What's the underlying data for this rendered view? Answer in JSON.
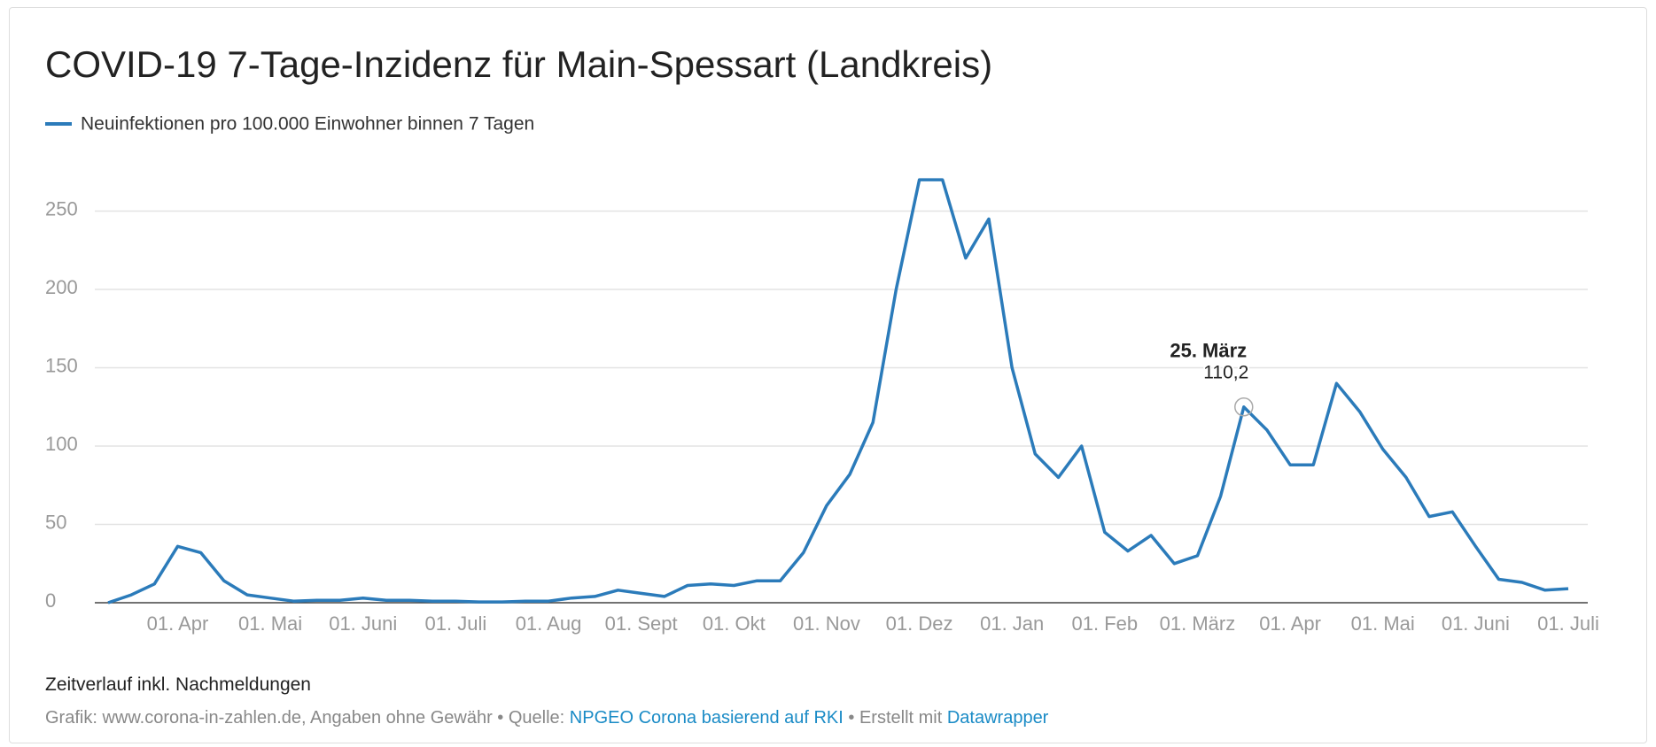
{
  "chart_data": {
    "type": "line",
    "title": "COVID-19 7-Tage-Inzidenz für Main-Spessart (Landkreis)",
    "categories": [
      null,
      null,
      null,
      "01. Apr",
      null,
      null,
      null,
      "01. Mai",
      null,
      null,
      null,
      "01. Juni",
      null,
      null,
      null,
      "01. Juli",
      null,
      null,
      null,
      "01. Aug",
      null,
      null,
      null,
      "01. Sept",
      null,
      null,
      null,
      "01. Okt",
      null,
      null,
      null,
      "01. Nov",
      null,
      null,
      null,
      "01. Dez",
      null,
      null,
      null,
      "01. Jan",
      null,
      null,
      null,
      "01. Feb",
      null,
      null,
      null,
      "01. März",
      null,
      null,
      null,
      "01. Apr",
      null,
      null,
      null,
      "01. Mai",
      null,
      null,
      null,
      "01. Juni",
      null,
      null,
      null,
      "01. Juli"
    ],
    "series": [
      {
        "name": "Neuinfektionen pro 100.000 Einwohner binnen 7 Tagen",
        "color": "#2b7bba",
        "values": [
          0,
          5,
          12,
          36,
          32,
          14,
          5,
          3,
          1,
          1.5,
          1.5,
          3,
          1.5,
          1.5,
          1,
          1,
          0.5,
          0.5,
          1,
          1,
          3,
          4,
          8,
          6,
          4,
          11,
          12,
          11,
          14,
          14,
          32,
          62,
          82,
          115,
          200,
          270,
          270,
          220,
          245,
          150,
          95,
          80,
          100,
          45,
          33,
          43,
          25,
          30,
          68,
          125,
          110.2,
          88,
          88,
          140,
          122,
          98,
          80,
          55,
          58,
          36,
          15,
          13,
          8,
          9
        ]
      }
    ],
    "annotation": {
      "title": "25. März",
      "value_label": "110,2"
    },
    "ylim": [
      0,
      300
    ],
    "yticks": [
      0,
      50,
      100,
      150,
      200,
      250
    ],
    "grid": true,
    "notes": "Zeitverlauf inkl. Nachmeldungen",
    "footer": {
      "prefix": "Grafik: www.corona-in-zahlen.de, Angaben ohne Gewähr • Quelle: ",
      "source": "NPGEO Corona basierend auf RKI",
      "middle": " • Erstellt mit ",
      "tool": "Datawrapper"
    }
  }
}
